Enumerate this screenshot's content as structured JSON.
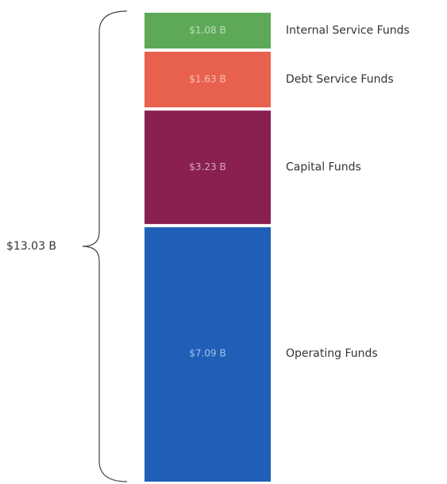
{
  "chart_data": {
    "type": "stacked-bar",
    "series": [
      {
        "name": "Operating Funds",
        "color": "#1f5fb8",
        "values": [
          7.09
        ],
        "value_labels": [
          "$7.09 B"
        ]
      },
      {
        "name": "Capital Funds",
        "color": "#8a1f52",
        "values": [
          3.23
        ],
        "value_labels": [
          "$3.23 B"
        ]
      },
      {
        "name": "Debt Service Funds",
        "color": "#e8614e",
        "values": [
          1.63
        ],
        "value_labels": [
          "$1.63 B"
        ]
      },
      {
        "name": "Internal Service Funds",
        "color": "#5ea957",
        "values": [
          1.08
        ],
        "value_labels": [
          "$1.08 B"
        ]
      }
    ],
    "total": 13.03,
    "total_label": "$13.03 B"
  }
}
